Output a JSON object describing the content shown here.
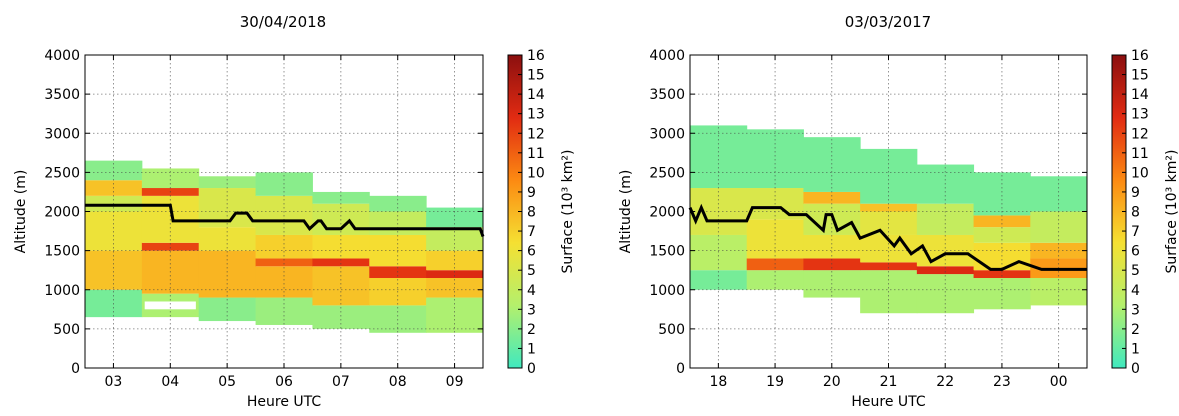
{
  "figure": {
    "colorbar_label": "Surface (10³ km²)",
    "colormap": [
      "#40e9bf",
      "#b4f06c",
      "#f5e032",
      "#fc8a12",
      "#e12b12",
      "#8b0f0f"
    ]
  },
  "chart_data": [
    {
      "type": "heatmap",
      "title": "30/04/2018",
      "xlabel": "Heure UTC",
      "ylabel": "Altitude (m)",
      "x_tick_labels": [
        "03",
        "04",
        "05",
        "06",
        "07",
        "08",
        "09"
      ],
      "y_ticks": [
        0,
        500,
        1000,
        1500,
        2000,
        2500,
        3000,
        3500,
        4000
      ],
      "ylim": [
        0,
        4000
      ],
      "colorbar_ticks": [
        0,
        1,
        2,
        3,
        4,
        5,
        6,
        7,
        8,
        9,
        10,
        11,
        12,
        13,
        14,
        15,
        16
      ],
      "colorbar_range": [
        0,
        16
      ],
      "grid": true,
      "columns": [
        {
          "hour": "03",
          "range": [
            600,
            2650
          ],
          "hotspots": [
            [
              650,
              1000,
              1.5
            ],
            [
              1000,
              1500,
              7.5
            ],
            [
              1500,
              2000,
              6
            ],
            [
              2000,
              2200,
              4.5
            ],
            [
              2200,
              2400,
              7.5
            ],
            [
              2400,
              2650,
              2
            ]
          ]
        },
        {
          "hour": "04",
          "range": [
            650,
            2550
          ],
          "gaps": [
            [
              750,
              850
            ]
          ],
          "hotspots": [
            [
              650,
              950,
              3
            ],
            [
              950,
              1500,
              8
            ],
            [
              1500,
              1600,
              12
            ],
            [
              1600,
              2200,
              6
            ],
            [
              2200,
              2300,
              12
            ],
            [
              2300,
              2550,
              3
            ]
          ]
        },
        {
          "hour": "05",
          "range": [
            600,
            2450
          ],
          "hotspots": [
            [
              600,
              900,
              2
            ],
            [
              900,
              1500,
              8
            ],
            [
              1500,
              1800,
              6
            ],
            [
              1800,
              2300,
              5
            ],
            [
              2300,
              2450,
              2.5
            ]
          ]
        },
        {
          "hour": "06",
          "range": [
            550,
            2500
          ],
          "hotspots": [
            [
              550,
              900,
              2.5
            ],
            [
              900,
              1300,
              8
            ],
            [
              1300,
              1400,
              11
            ],
            [
              1400,
              1700,
              7
            ],
            [
              1700,
              2200,
              5
            ],
            [
              2200,
              2500,
              2
            ]
          ]
        },
        {
          "hour": "07",
          "range": [
            500,
            2250
          ],
          "hotspots": [
            [
              500,
              800,
              2.5
            ],
            [
              800,
              1300,
              7.5
            ],
            [
              1300,
              1400,
              12.5
            ],
            [
              1400,
              1700,
              6.5
            ],
            [
              1700,
              2100,
              4.5
            ],
            [
              2100,
              2250,
              2
            ]
          ]
        },
        {
          "hour": "08",
          "range": [
            450,
            2200
          ],
          "hotspots": [
            [
              450,
              800,
              2.5
            ],
            [
              800,
              1150,
              7
            ],
            [
              1150,
              1300,
              12.5
            ],
            [
              1300,
              1700,
              6.5
            ],
            [
              1700,
              2000,
              4
            ],
            [
              2000,
              2200,
              2
            ]
          ]
        },
        {
          "hour": "09",
          "range": [
            450,
            2050
          ],
          "hotspots": [
            [
              450,
              900,
              3
            ],
            [
              900,
              1150,
              7.5
            ],
            [
              1150,
              1250,
              13
            ],
            [
              1250,
              1500,
              7
            ],
            [
              1500,
              1800,
              4
            ],
            [
              1800,
              2050,
              1.5
            ]
          ]
        }
      ],
      "line": {
        "x": [
          2.5,
          3.5,
          4.0,
          4.05,
          5.05,
          5.15,
          5.35,
          5.45,
          6.35,
          6.45,
          6.6,
          6.65,
          6.75,
          7.0,
          7.15,
          7.25,
          9.45,
          9.5
        ],
        "y": [
          2080,
          2080,
          2080,
          1880,
          1880,
          1980,
          1980,
          1880,
          1880,
          1780,
          1880,
          1880,
          1780,
          1780,
          1880,
          1780,
          1780,
          1680
        ]
      }
    },
    {
      "type": "heatmap",
      "title": "03/03/2017",
      "xlabel": "Heure UTC",
      "ylabel": "Altitude (m)",
      "x_tick_labels": [
        "18",
        "19",
        "20",
        "21",
        "22",
        "23",
        "00"
      ],
      "y_ticks": [
        0,
        500,
        1000,
        1500,
        2000,
        2500,
        3000,
        3500,
        4000
      ],
      "ylim": [
        0,
        4000
      ],
      "colorbar_ticks": [
        0,
        1,
        2,
        3,
        4,
        5,
        6,
        7,
        8,
        9,
        10,
        11,
        12,
        13,
        14,
        15,
        16
      ],
      "colorbar_range": [
        0,
        16
      ],
      "grid": true,
      "columns": [
        {
          "hour": "17.5",
          "range": [
            1000,
            3100
          ],
          "hotspots": [
            [
              1000,
              1250,
              1.5
            ],
            [
              1250,
              1700,
              3.5
            ],
            [
              1700,
              2300,
              5
            ],
            [
              2300,
              3100,
              1.5
            ]
          ]
        },
        {
          "hour": "18.5",
          "range": [
            1000,
            3050
          ],
          "hotspots": [
            [
              1000,
              1250,
              3
            ],
            [
              1250,
              1400,
              11
            ],
            [
              1400,
              1900,
              6
            ],
            [
              1900,
              2300,
              5
            ],
            [
              2300,
              3050,
              1.5
            ]
          ]
        },
        {
          "hour": "19.5",
          "range": [
            900,
            2950
          ],
          "hotspots": [
            [
              900,
              1250,
              3
            ],
            [
              1250,
              1400,
              12.5
            ],
            [
              1400,
              1700,
              6
            ],
            [
              1700,
              2100,
              4.5
            ],
            [
              2100,
              2250,
              8
            ],
            [
              2250,
              2950,
              1.5
            ]
          ]
        },
        {
          "hour": "20.5",
          "range": [
            700,
            2800
          ],
          "hotspots": [
            [
              700,
              1250,
              3
            ],
            [
              1250,
              1350,
              12.5
            ],
            [
              1350,
              1700,
              6
            ],
            [
              1700,
              2000,
              5.5
            ],
            [
              2000,
              2100,
              7.5
            ],
            [
              2100,
              2800,
              1.5
            ]
          ]
        },
        {
          "hour": "21.5",
          "range": [
            700,
            2600
          ],
          "hotspots": [
            [
              700,
              1200,
              3
            ],
            [
              1200,
              1300,
              13
            ],
            [
              1300,
              1700,
              6
            ],
            [
              1700,
              2100,
              4
            ],
            [
              2100,
              2600,
              1.5
            ]
          ]
        },
        {
          "hour": "22.5",
          "range": [
            750,
            2500
          ],
          "hotspots": [
            [
              750,
              1150,
              3
            ],
            [
              1150,
              1250,
              12.5
            ],
            [
              1250,
              1600,
              6.5
            ],
            [
              1600,
              1800,
              4.5
            ],
            [
              1800,
              1950,
              8
            ],
            [
              1950,
              2500,
              1.5
            ]
          ]
        },
        {
          "hour": "23.5",
          "range": [
            800,
            2450
          ],
          "hotspots": [
            [
              800,
              1150,
              3.5
            ],
            [
              1150,
              1400,
              9
            ],
            [
              1400,
              1600,
              8
            ],
            [
              1600,
              2000,
              4
            ],
            [
              2000,
              2450,
              1.5
            ]
          ]
        }
      ],
      "line": {
        "x": [
          17.5,
          17.6,
          17.7,
          17.8,
          18.5,
          18.6,
          19.1,
          19.25,
          19.55,
          19.85,
          19.9,
          20.0,
          20.1,
          20.35,
          20.5,
          20.85,
          21.1,
          21.2,
          21.4,
          21.6,
          21.75,
          22.0,
          22.4,
          22.8,
          23.0,
          23.3,
          23.7,
          24.5
        ],
        "y": [
          2050,
          1880,
          2050,
          1880,
          1880,
          2050,
          2050,
          1960,
          1960,
          1760,
          1960,
          1960,
          1760,
          1860,
          1660,
          1760,
          1560,
          1660,
          1460,
          1560,
          1360,
          1460,
          1460,
          1260,
          1260,
          1360,
          1260,
          1260
        ]
      }
    }
  ]
}
